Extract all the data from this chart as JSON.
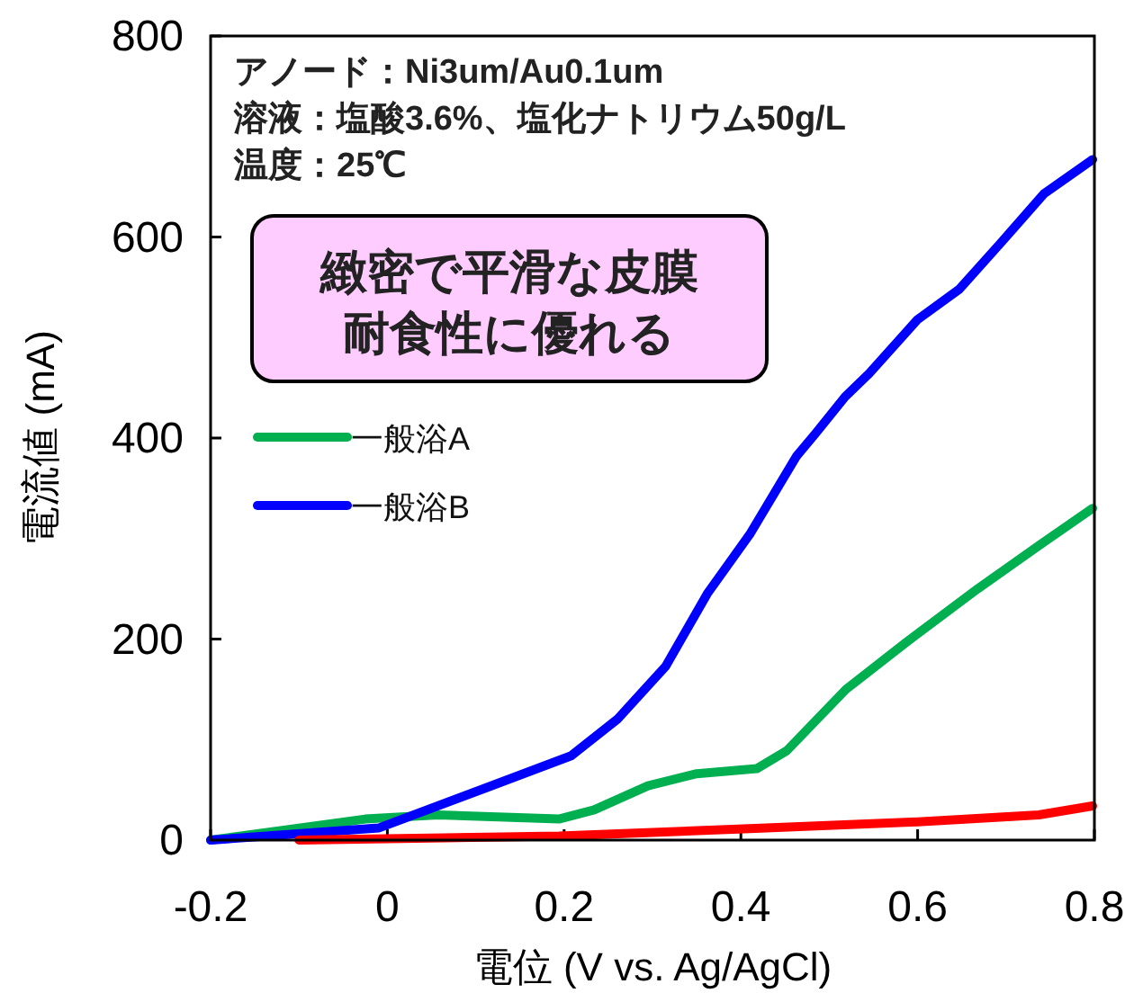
{
  "chart_data": {
    "type": "line",
    "xlabel": "電位 (V vs. Ag/AgCl)",
    "ylabel": "電流値 (mA)",
    "xlim": [
      -0.2,
      0.8
    ],
    "xticks": [
      -0.2,
      0,
      0.2,
      0.4,
      0.6,
      0.8
    ],
    "ylim": [
      0,
      800
    ],
    "yticks": [
      0,
      200,
      400,
      600,
      800
    ],
    "grid": false,
    "legend": "left",
    "marker": "none",
    "line_style": "solid",
    "annotations": [
      "アノード：Ni3um/Au0.1um",
      "溶液：塩酸3.6%、塩化ナトリウム50g/L",
      "温度：25℃",
      "緻密で平滑な皮膜",
      "耐食性に優れる"
    ],
    "series": [
      {
        "name": "一般浴A",
        "color": "#00b050",
        "x": [
          -0.2,
          -0.025,
          0.057,
          0.194,
          0.234,
          0.295,
          0.35,
          0.418,
          0.452,
          0.519,
          0.586,
          0.668,
          0.737,
          0.798
        ],
        "values": [
          0,
          21,
          25,
          21,
          30,
          54,
          66,
          71,
          89,
          150,
          196,
          250,
          293,
          330
        ]
      },
      {
        "name": "一般浴B",
        "color": "#0000ff",
        "x": [
          -0.2,
          -0.01,
          0.112,
          0.208,
          0.26,
          0.315,
          0.362,
          0.41,
          0.463,
          0.485,
          0.518,
          0.545,
          0.6,
          0.647,
          0.696,
          0.743,
          0.798
        ],
        "values": [
          0,
          12,
          52,
          84,
          120,
          173,
          245,
          304,
          382,
          405,
          441,
          464,
          518,
          548,
          596,
          643,
          677
        ]
      },
      {
        "color": "#ff0000",
        "x": [
          -0.1,
          0.194,
          0.397,
          0.6,
          0.737,
          0.798
        ],
        "values": [
          0,
          4,
          11,
          18,
          25,
          34
        ]
      }
    ]
  }
}
